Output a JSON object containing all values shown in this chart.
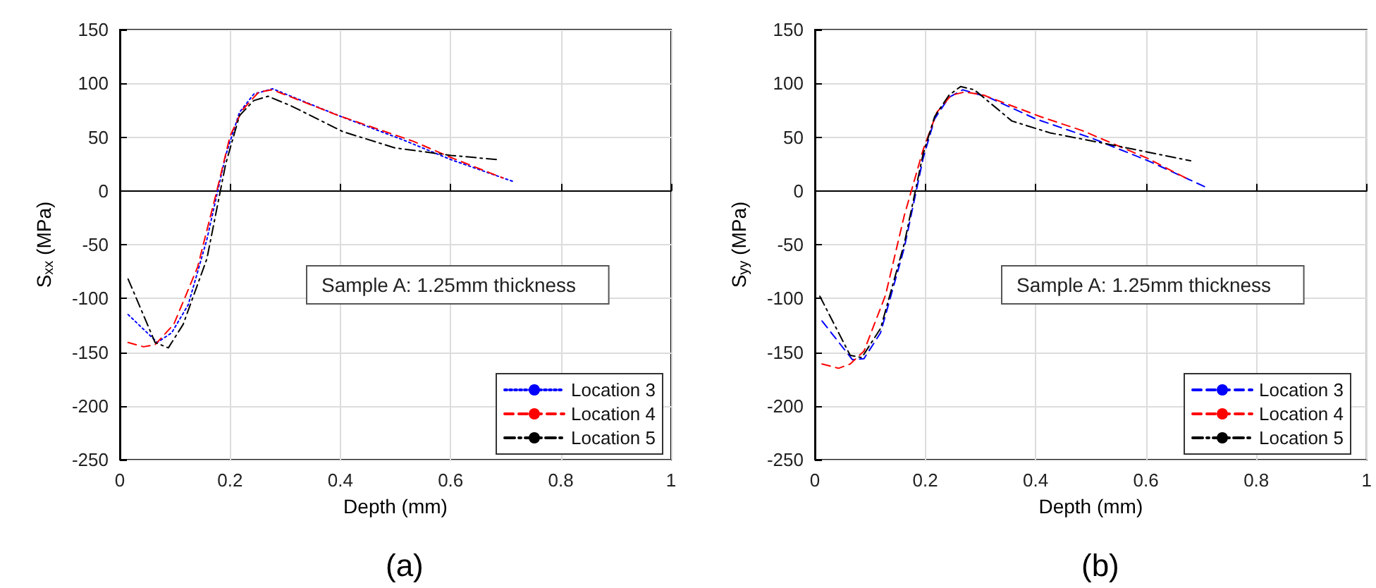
{
  "chart_data": [
    {
      "type": "line",
      "title": "(a)",
      "xlabel": "Depth (mm)",
      "ylabel": "S$_{xx}$ (MPa)",
      "annotations": [
        "Sample A: 1.25mm thickness"
      ],
      "xlim": [
        0,
        1
      ],
      "xticks": [
        0,
        0.2,
        0.4,
        0.6,
        0.8,
        1
      ],
      "ylim": [
        -250,
        150
      ],
      "yticks": [
        -250,
        -200,
        -150,
        -100,
        -50,
        0,
        50,
        100,
        150
      ],
      "grid": true,
      "legend": "bottom right",
      "marker": "none",
      "series": [
        {
          "name": "Location 3",
          "color": "#0000ff",
          "line_style": "dotted",
          "x": [
            0.015,
            0.068,
            0.094,
            0.124,
            0.158,
            0.192,
            0.217,
            0.243,
            0.277,
            0.397,
            0.516,
            0.601,
            0.712
          ],
          "values": [
            -115,
            -141,
            -132,
            -106,
            -45,
            33,
            73,
            90,
            95,
            70,
            47,
            29,
            9
          ]
        },
        {
          "name": "Location 4",
          "color": "#ff0000",
          "line_style": "dashed",
          "x": [
            0.015,
            0.043,
            0.064,
            0.098,
            0.141,
            0.175,
            0.2,
            0.222,
            0.252,
            0.277,
            0.397,
            0.533,
            0.601,
            0.695
          ],
          "values": [
            -141,
            -145,
            -143,
            -124,
            -71,
            -2,
            51,
            75,
            92,
            94,
            70,
            46,
            31,
            12
          ]
        },
        {
          "name": "Location 5",
          "color": "#000000",
          "line_style": "dashdot",
          "x": [
            0.015,
            0.064,
            0.088,
            0.115,
            0.158,
            0.192,
            0.217,
            0.243,
            0.269,
            0.311,
            0.405,
            0.499,
            0.601,
            0.687
          ],
          "values": [
            -82,
            -141,
            -146,
            -124,
            -63,
            25,
            70,
            84,
            88,
            79,
            55,
            40,
            33,
            29
          ]
        }
      ]
    },
    {
      "type": "line",
      "title": "(b)",
      "xlabel": "Depth (mm)",
      "ylabel": "S$_{yy}$ (MPa)",
      "annotations": [
        "Sample A: 1.25mm thickness"
      ],
      "xlim": [
        0,
        1
      ],
      "xticks": [
        0,
        0.2,
        0.4,
        0.6,
        0.8,
        1
      ],
      "ylim": [
        -250,
        150
      ],
      "yticks": [
        -250,
        -200,
        -150,
        -100,
        -50,
        0,
        50,
        100,
        150
      ],
      "grid": true,
      "legend": "bottom right",
      "marker": "none",
      "series": [
        {
          "name": "Location 3",
          "color": "#0000ff",
          "line_style": "dashed",
          "x": [
            0.013,
            0.068,
            0.089,
            0.119,
            0.162,
            0.196,
            0.217,
            0.243,
            0.268,
            0.315,
            0.4,
            0.502,
            0.604,
            0.706
          ],
          "values": [
            -121,
            -157,
            -156,
            -132,
            -53,
            30,
            67,
            87,
            94,
            87,
            67,
            49,
            28,
            4
          ]
        },
        {
          "name": "Location 4",
          "color": "#ff0000",
          "line_style": "dashed",
          "x": [
            0.013,
            0.043,
            0.064,
            0.089,
            0.128,
            0.162,
            0.196,
            0.221,
            0.247,
            0.272,
            0.306,
            0.409,
            0.485,
            0.604,
            0.672
          ],
          "values": [
            -161,
            -165,
            -161,
            -149,
            -97,
            -23,
            38,
            73,
            89,
            92,
            89,
            69,
            56,
            30,
            12
          ]
        },
        {
          "name": "Location 5",
          "color": "#000000",
          "line_style": "dashdot",
          "x": [
            0.009,
            0.064,
            0.085,
            0.119,
            0.162,
            0.196,
            0.217,
            0.243,
            0.264,
            0.289,
            0.357,
            0.426,
            0.536,
            0.681
          ],
          "values": [
            -98,
            -153,
            -155,
            -128,
            -49,
            34,
            69,
            89,
            97,
            94,
            65,
            54,
            43,
            28
          ]
        }
      ]
    }
  ]
}
